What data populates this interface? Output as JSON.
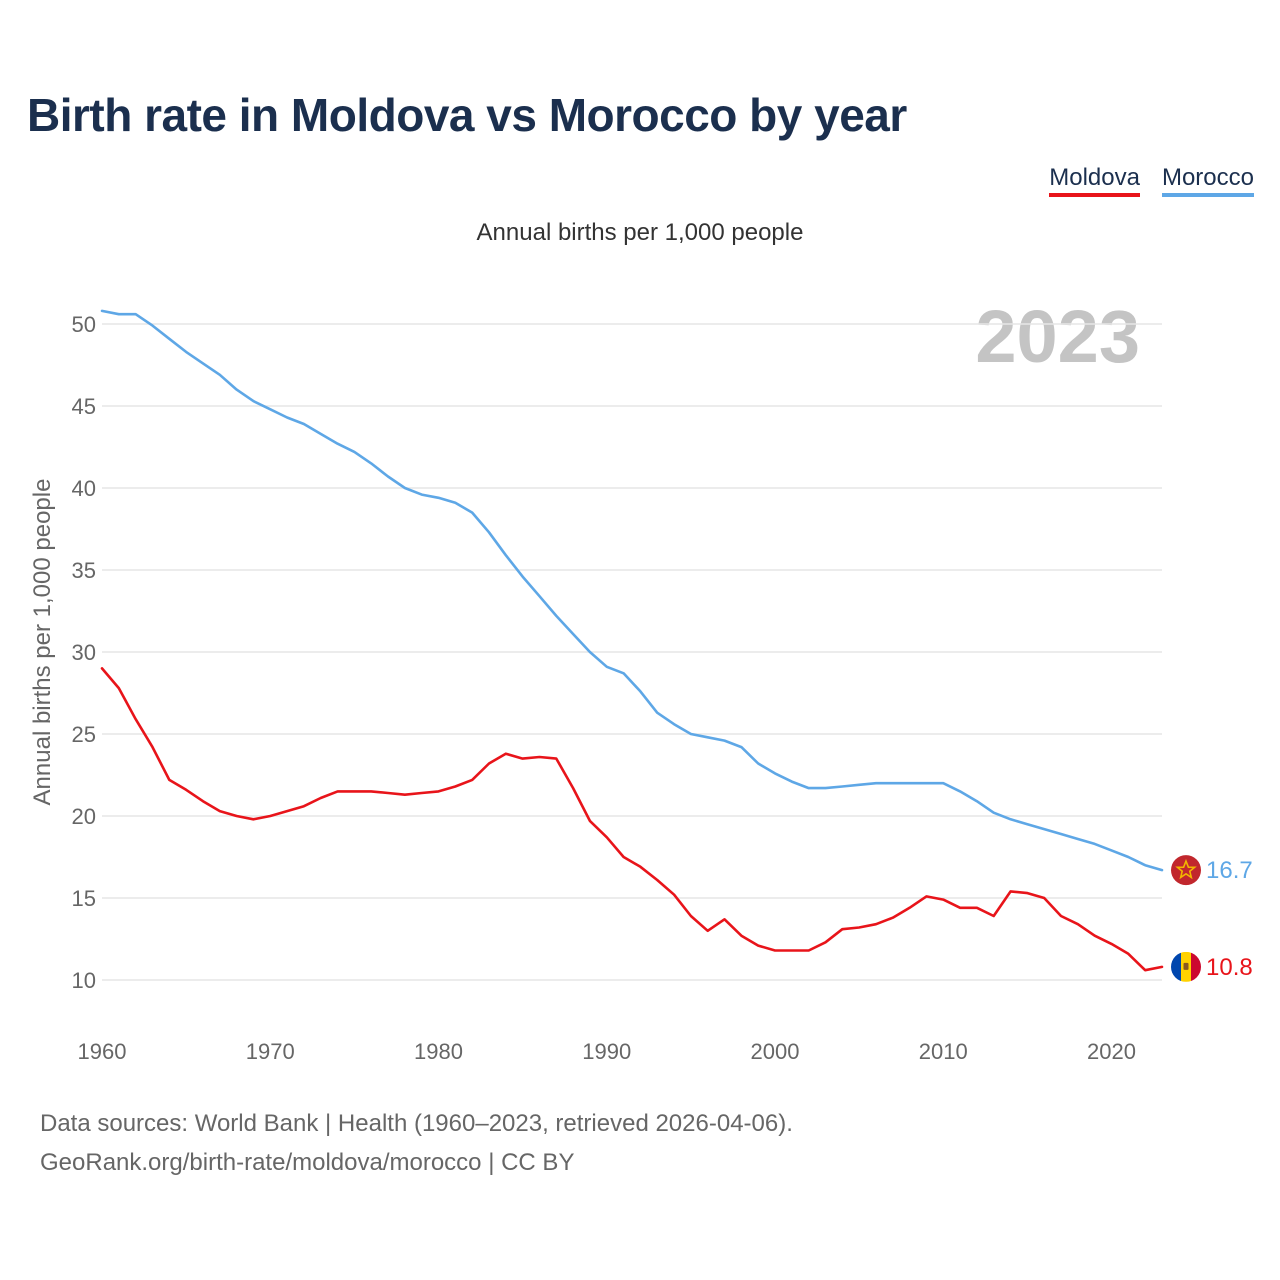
{
  "title": "Birth rate in Moldova vs Morocco by year",
  "legend": {
    "moldova": "Moldova",
    "morocco": "Morocco"
  },
  "footer": {
    "source": "Data sources: World Bank | Health (1960–2023, retrieved 2026-04-06).",
    "link": "GeoRank.org/birth-rate/moldova/morocco | CC BY"
  },
  "colors": {
    "moldova": "#e8141a",
    "morocco": "#5ea7e6",
    "title": "#1b2f4e",
    "grid": "#e6e6e6",
    "axis_text": "#666666",
    "year_watermark": "#c4c4c4"
  },
  "icons": {
    "moldova": "moldova-flag-icon",
    "morocco": "morocco-flag-icon"
  },
  "chart_data": {
    "type": "line",
    "title": "Annual births per 1,000 people",
    "ylabel": "Annual births per 1,000 people",
    "xlabel": "",
    "year_label": "2023",
    "xlim": [
      1960,
      2023
    ],
    "ylim": [
      7.5,
      52.5
    ],
    "yticks": [
      10,
      15,
      20,
      25,
      30,
      35,
      40,
      45,
      50
    ],
    "xticks": [
      1960,
      1970,
      1980,
      1990,
      2000,
      2010,
      2020
    ],
    "grid": true,
    "legend_position": "top-right",
    "x": [
      1960,
      1961,
      1962,
      1963,
      1964,
      1965,
      1966,
      1967,
      1968,
      1969,
      1970,
      1971,
      1972,
      1973,
      1974,
      1975,
      1976,
      1977,
      1978,
      1979,
      1980,
      1981,
      1982,
      1983,
      1984,
      1985,
      1986,
      1987,
      1988,
      1989,
      1990,
      1991,
      1992,
      1993,
      1994,
      1995,
      1996,
      1997,
      1998,
      1999,
      2000,
      2001,
      2002,
      2003,
      2004,
      2005,
      2006,
      2007,
      2008,
      2009,
      2010,
      2011,
      2012,
      2013,
      2014,
      2015,
      2016,
      2017,
      2018,
      2019,
      2020,
      2021,
      2022,
      2023
    ],
    "series": [
      {
        "name": "Moldova",
        "end_label": "10.8",
        "values": [
          29.0,
          27.8,
          25.9,
          24.2,
          22.2,
          21.6,
          20.9,
          20.3,
          20.0,
          19.8,
          20.0,
          20.3,
          20.6,
          21.1,
          21.5,
          21.5,
          21.5,
          21.4,
          21.3,
          21.4,
          21.5,
          21.8,
          22.2,
          23.2,
          23.8,
          23.5,
          23.6,
          23.5,
          21.7,
          19.7,
          18.7,
          17.5,
          16.9,
          16.1,
          15.2,
          13.9,
          13.0,
          13.7,
          12.7,
          12.1,
          11.8,
          11.8,
          11.8,
          12.3,
          13.1,
          13.2,
          13.4,
          13.8,
          14.4,
          15.1,
          14.9,
          14.4,
          14.4,
          13.9,
          15.4,
          15.3,
          15.0,
          13.9,
          13.4,
          12.7,
          12.2,
          11.6,
          10.6,
          10.8
        ]
      },
      {
        "name": "Morocco",
        "end_label": "16.7",
        "values": [
          50.8,
          50.6,
          50.6,
          49.9,
          49.1,
          48.3,
          47.6,
          46.9,
          46.0,
          45.3,
          44.8,
          44.3,
          43.9,
          43.3,
          42.7,
          42.2,
          41.5,
          40.7,
          40.0,
          39.6,
          39.4,
          39.1,
          38.5,
          37.3,
          35.9,
          34.6,
          33.4,
          32.2,
          31.1,
          30.0,
          29.1,
          28.7,
          27.6,
          26.3,
          25.6,
          25.0,
          24.8,
          24.6,
          24.2,
          23.2,
          22.6,
          22.1,
          21.7,
          21.7,
          21.8,
          21.9,
          22.0,
          22.0,
          22.0,
          22.0,
          22.0,
          21.5,
          20.9,
          20.2,
          19.8,
          19.5,
          19.2,
          18.9,
          18.6,
          18.3,
          17.9,
          17.5,
          17.0,
          16.7
        ]
      }
    ]
  }
}
